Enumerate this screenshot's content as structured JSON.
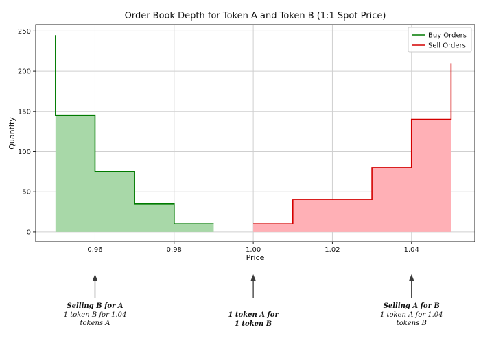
{
  "chart_data": {
    "type": "step-area",
    "title": "Order Book Depth for Token A and Token B (1:1 Spot Price)",
    "xlabel": "Price",
    "ylabel": "Quantity",
    "xlim": [
      0.945,
      1.056
    ],
    "ylim": [
      -12,
      258
    ],
    "xticks": [
      0.96,
      0.98,
      1.0,
      1.02,
      1.04
    ],
    "xtick_labels": [
      "0.96",
      "0.98",
      "1.00",
      "1.02",
      "1.04"
    ],
    "yticks": [
      0,
      50,
      100,
      150,
      200,
      250
    ],
    "ytick_labels": [
      "0",
      "50",
      "100",
      "150",
      "200",
      "250"
    ],
    "grid": true,
    "legend_position": "top-right",
    "series": [
      {
        "name": "Buy Orders",
        "color": "#007a00",
        "fill": "#a8d8a8",
        "points": [
          [
            0.95,
            245
          ],
          [
            0.95,
            145
          ],
          [
            0.96,
            145
          ],
          [
            0.96,
            75
          ],
          [
            0.97,
            75
          ],
          [
            0.97,
            35
          ],
          [
            0.98,
            35
          ],
          [
            0.98,
            10
          ],
          [
            0.99,
            10
          ]
        ]
      },
      {
        "name": "Sell Orders",
        "color": "#d40000",
        "fill": "#ffb0b6",
        "points": [
          [
            1.0,
            10
          ],
          [
            1.01,
            10
          ],
          [
            1.01,
            40
          ],
          [
            1.03,
            40
          ],
          [
            1.03,
            80
          ],
          [
            1.04,
            80
          ],
          [
            1.04,
            140
          ],
          [
            1.05,
            140
          ],
          [
            1.05,
            210
          ]
        ]
      }
    ]
  },
  "annotations": [
    {
      "x": 0.96,
      "title": "Selling B for A",
      "lines": [
        "1 token B for 1.04",
        "tokens A"
      ]
    },
    {
      "x": 1.0,
      "title": "",
      "lines": [
        "1 token A for",
        "1 token B"
      ]
    },
    {
      "x": 1.04,
      "title": "Selling A for B",
      "lines": [
        "1 token A for 1.04",
        "tokens B"
      ]
    }
  ]
}
